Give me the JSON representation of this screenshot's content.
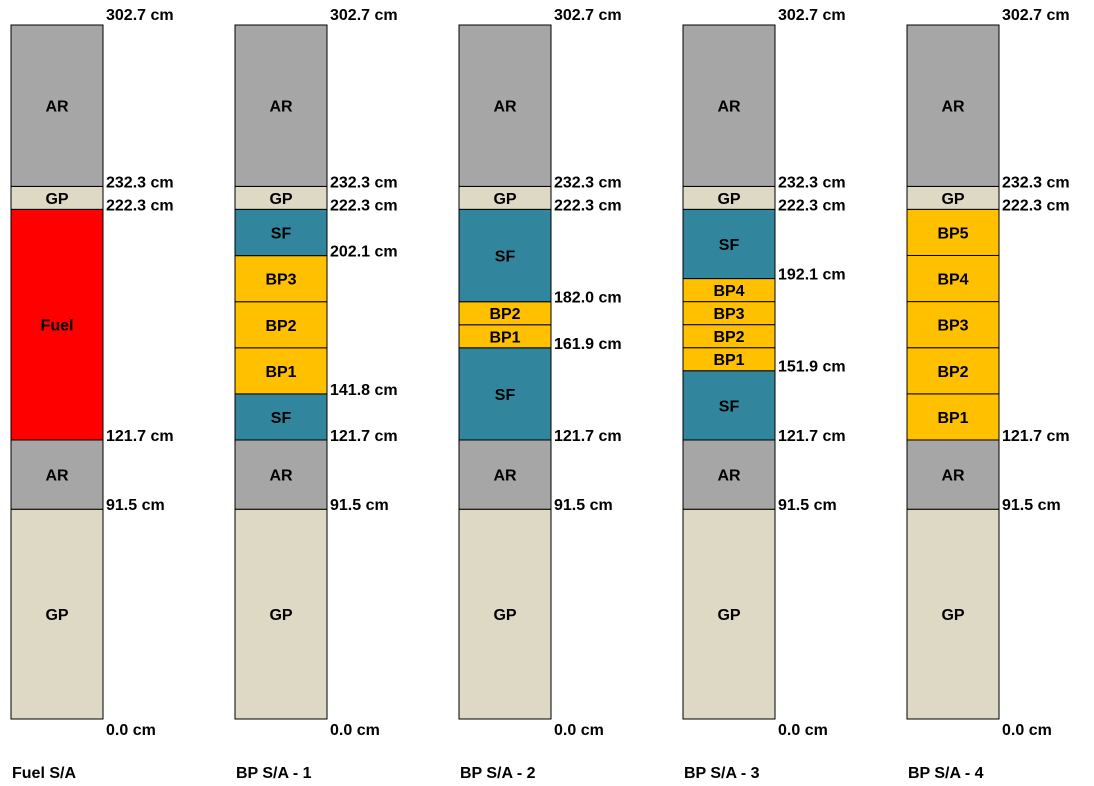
{
  "colors": {
    "AR": "#a6a6a6",
    "GP": "#ddd9c4",
    "Fuel": "#ff0000",
    "SF": "#31859c",
    "BP": "#ffc000",
    "border": "#000000"
  },
  "columns": [
    {
      "title": "Fuel S/A",
      "segments": [
        {
          "label": "GP",
          "kind": "GP",
          "from": 0.0,
          "to": 91.5
        },
        {
          "label": "AR",
          "kind": "AR",
          "from": 91.5,
          "to": 121.7
        },
        {
          "label": "Fuel",
          "kind": "Fuel",
          "from": 121.7,
          "to": 222.3
        },
        {
          "label": "GP",
          "kind": "GP",
          "from": 222.3,
          "to": 232.3
        },
        {
          "label": "AR",
          "kind": "AR",
          "from": 232.3,
          "to": 302.7
        }
      ],
      "marks": [
        {
          "value": 302.7,
          "text": "302.7 cm"
        },
        {
          "value": 232.3,
          "text": "232.3 cm"
        },
        {
          "value": 222.3,
          "text": "222.3 cm"
        },
        {
          "value": 121.7,
          "text": "121.7 cm"
        },
        {
          "value": 91.5,
          "text": "91.5 cm"
        },
        {
          "value": 0.0,
          "text": "0.0 cm"
        }
      ]
    },
    {
      "title": "BP S/A - 1",
      "segments": [
        {
          "label": "GP",
          "kind": "GP",
          "from": 0.0,
          "to": 91.5
        },
        {
          "label": "AR",
          "kind": "AR",
          "from": 91.5,
          "to": 121.7
        },
        {
          "label": "SF",
          "kind": "SF",
          "from": 121.7,
          "to": 141.8
        },
        {
          "label": "BP1",
          "kind": "BP",
          "from": 141.8,
          "to": 161.9
        },
        {
          "label": "BP2",
          "kind": "BP",
          "from": 161.9,
          "to": 182.0
        },
        {
          "label": "BP3",
          "kind": "BP",
          "from": 182.0,
          "to": 202.1
        },
        {
          "label": "SF",
          "kind": "SF",
          "from": 202.1,
          "to": 222.3
        },
        {
          "label": "GP",
          "kind": "GP",
          "from": 222.3,
          "to": 232.3
        },
        {
          "label": "AR",
          "kind": "AR",
          "from": 232.3,
          "to": 302.7
        }
      ],
      "marks": [
        {
          "value": 302.7,
          "text": "302.7 cm"
        },
        {
          "value": 232.3,
          "text": "232.3 cm"
        },
        {
          "value": 222.3,
          "text": "222.3 cm"
        },
        {
          "value": 202.1,
          "text": "202.1 cm"
        },
        {
          "value": 141.8,
          "text": "141.8 cm"
        },
        {
          "value": 121.7,
          "text": "121.7 cm"
        },
        {
          "value": 91.5,
          "text": "91.5 cm"
        },
        {
          "value": 0.0,
          "text": "0.0 cm"
        }
      ]
    },
    {
      "title": "BP S/A - 2",
      "segments": [
        {
          "label": "GP",
          "kind": "GP",
          "from": 0.0,
          "to": 91.5
        },
        {
          "label": "AR",
          "kind": "AR",
          "from": 91.5,
          "to": 121.7
        },
        {
          "label": "SF",
          "kind": "SF",
          "from": 121.7,
          "to": 161.9
        },
        {
          "label": "BP1",
          "kind": "BP",
          "from": 161.9,
          "to": 171.95
        },
        {
          "label": "BP2",
          "kind": "BP",
          "from": 171.95,
          "to": 182.0
        },
        {
          "label": "SF",
          "kind": "SF",
          "from": 182.0,
          "to": 222.3
        },
        {
          "label": "GP",
          "kind": "GP",
          "from": 222.3,
          "to": 232.3
        },
        {
          "label": "AR",
          "kind": "AR",
          "from": 232.3,
          "to": 302.7
        }
      ],
      "marks": [
        {
          "value": 302.7,
          "text": "302.7 cm"
        },
        {
          "value": 232.3,
          "text": "232.3 cm"
        },
        {
          "value": 222.3,
          "text": "222.3 cm"
        },
        {
          "value": 182.0,
          "text": "182.0 cm"
        },
        {
          "value": 161.9,
          "text": "161.9 cm"
        },
        {
          "value": 121.7,
          "text": "121.7 cm"
        },
        {
          "value": 91.5,
          "text": "91.5 cm"
        },
        {
          "value": 0.0,
          "text": "0.0 cm"
        }
      ]
    },
    {
      "title": "BP S/A - 3",
      "segments": [
        {
          "label": "GP",
          "kind": "GP",
          "from": 0.0,
          "to": 91.5
        },
        {
          "label": "AR",
          "kind": "AR",
          "from": 91.5,
          "to": 121.7
        },
        {
          "label": "SF",
          "kind": "SF",
          "from": 121.7,
          "to": 151.9
        },
        {
          "label": "BP1",
          "kind": "BP",
          "from": 151.9,
          "to": 161.95
        },
        {
          "label": "BP2",
          "kind": "BP",
          "from": 161.95,
          "to": 172.0
        },
        {
          "label": "BP3",
          "kind": "BP",
          "from": 172.0,
          "to": 182.05
        },
        {
          "label": "BP4",
          "kind": "BP",
          "from": 182.05,
          "to": 192.1
        },
        {
          "label": "SF",
          "kind": "SF",
          "from": 192.1,
          "to": 222.3
        },
        {
          "label": "GP",
          "kind": "GP",
          "from": 222.3,
          "to": 232.3
        },
        {
          "label": "AR",
          "kind": "AR",
          "from": 232.3,
          "to": 302.7
        }
      ],
      "marks": [
        {
          "value": 302.7,
          "text": "302.7 cm"
        },
        {
          "value": 232.3,
          "text": "232.3 cm"
        },
        {
          "value": 222.3,
          "text": "222.3 cm"
        },
        {
          "value": 192.1,
          "text": "192.1 cm"
        },
        {
          "value": 151.9,
          "text": "151.9 cm"
        },
        {
          "value": 121.7,
          "text": "121.7 cm"
        },
        {
          "value": 91.5,
          "text": "91.5 cm"
        },
        {
          "value": 0.0,
          "text": "0.0 cm"
        }
      ]
    },
    {
      "title": "BP S/A - 4",
      "segments": [
        {
          "label": "GP",
          "kind": "GP",
          "from": 0.0,
          "to": 91.5
        },
        {
          "label": "AR",
          "kind": "AR",
          "from": 91.5,
          "to": 121.7
        },
        {
          "label": "BP1",
          "kind": "BP",
          "from": 121.7,
          "to": 141.82
        },
        {
          "label": "BP2",
          "kind": "BP",
          "from": 141.82,
          "to": 161.94
        },
        {
          "label": "BP3",
          "kind": "BP",
          "from": 161.94,
          "to": 182.06
        },
        {
          "label": "BP4",
          "kind": "BP",
          "from": 182.06,
          "to": 202.18
        },
        {
          "label": "BP5",
          "kind": "BP",
          "from": 202.18,
          "to": 222.3
        },
        {
          "label": "GP",
          "kind": "GP",
          "from": 222.3,
          "to": 232.3
        },
        {
          "label": "AR",
          "kind": "AR",
          "from": 232.3,
          "to": 302.7
        }
      ],
      "marks": [
        {
          "value": 302.7,
          "text": "302.7 cm"
        },
        {
          "value": 232.3,
          "text": "232.3 cm"
        },
        {
          "value": 222.3,
          "text": "222.3 cm"
        },
        {
          "value": 121.7,
          "text": "121.7 cm"
        },
        {
          "value": 91.5,
          "text": "91.5 cm"
        },
        {
          "value": 0.0,
          "text": "0.0 cm"
        }
      ]
    }
  ]
}
